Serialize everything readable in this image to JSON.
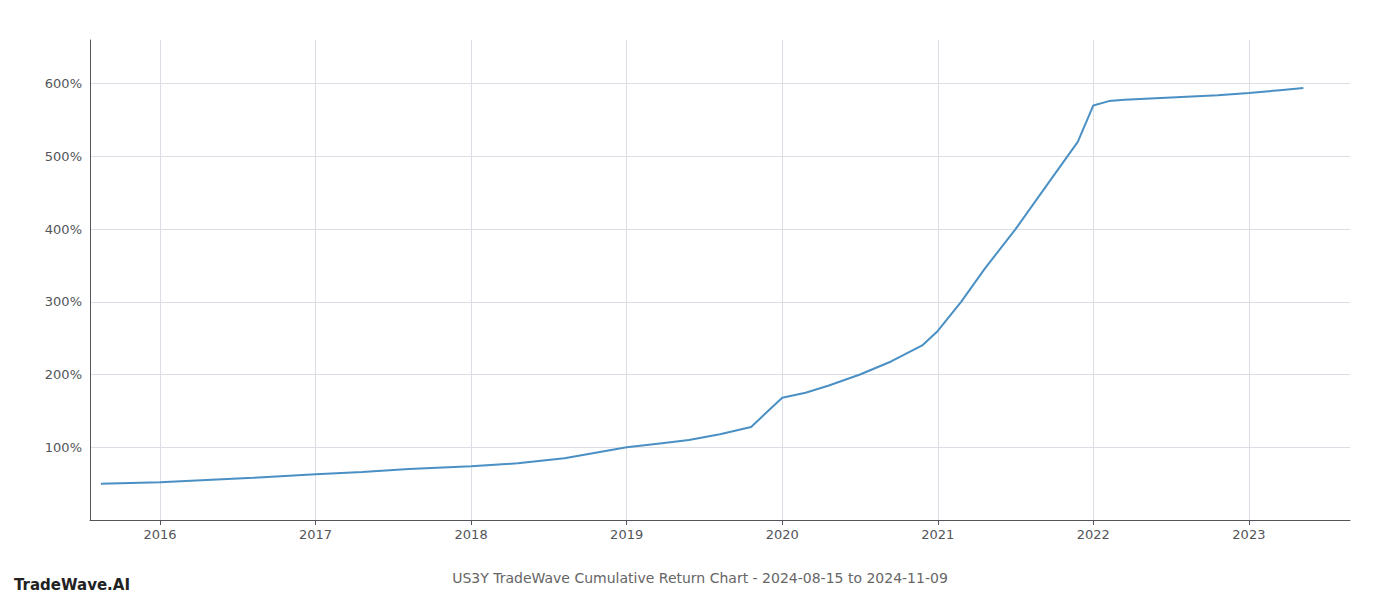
{
  "chart_data": {
    "type": "line",
    "title": "US3Y TradeWave Cumulative Return Chart - 2024-08-15 to 2024-11-09",
    "annotations": [
      "TradeWave.AI"
    ],
    "x": [
      2015.62,
      2016.0,
      2016.3,
      2016.6,
      2017.0,
      2017.3,
      2017.6,
      2018.0,
      2018.3,
      2018.6,
      2019.0,
      2019.2,
      2019.4,
      2019.6,
      2019.8,
      2020.0,
      2020.15,
      2020.3,
      2020.5,
      2020.7,
      2020.9,
      2021.0,
      2021.15,
      2021.3,
      2021.5,
      2021.7,
      2021.9,
      2022.0,
      2022.1,
      2022.2,
      2022.4,
      2022.6,
      2022.8,
      2023.0,
      2023.2,
      2023.35
    ],
    "values": [
      50,
      52,
      55,
      58,
      63,
      66,
      70,
      74,
      78,
      85,
      100,
      105,
      110,
      118,
      128,
      168,
      175,
      185,
      200,
      218,
      240,
      260,
      300,
      345,
      400,
      460,
      520,
      570,
      576,
      578,
      580,
      582,
      584,
      587,
      591,
      594
    ],
    "color": "#4a90c4",
    "xlim": [
      2015.55,
      2023.65
    ],
    "ylim": [
      0,
      660
    ],
    "xticks": [
      2016,
      2017,
      2018,
      2019,
      2020,
      2021,
      2022,
      2023
    ],
    "yticks": [
      {
        "value": 100,
        "label": "100%"
      },
      {
        "value": 200,
        "label": "200%"
      },
      {
        "value": 300,
        "label": "300%"
      },
      {
        "value": 400,
        "label": "400%"
      },
      {
        "value": 500,
        "label": "500%"
      },
      {
        "value": 600,
        "label": "600%"
      }
    ],
    "grid": true
  }
}
